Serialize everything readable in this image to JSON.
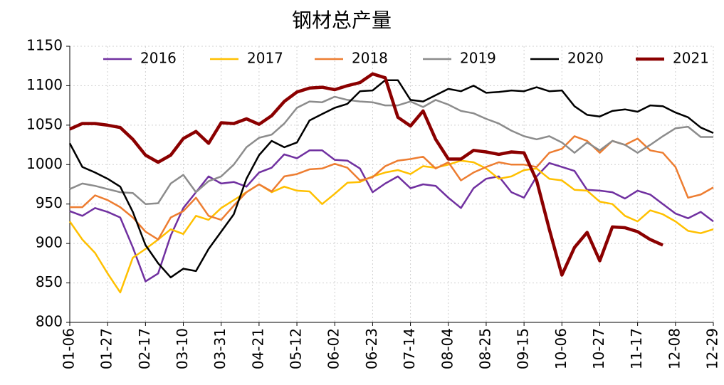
{
  "chart_data": {
    "type": "line",
    "title": "钢材总产量",
    "categories": [
      "01-06",
      null,
      null,
      "01-27",
      null,
      null,
      "02-17",
      null,
      null,
      "03-10",
      null,
      null,
      "03-31",
      null,
      null,
      "04-21",
      null,
      null,
      "05-12",
      null,
      null,
      "06-02",
      null,
      null,
      "06-23",
      null,
      null,
      "07-14",
      null,
      null,
      "08-04",
      null,
      null,
      "08-25",
      null,
      null,
      "09-15",
      null,
      null,
      "10-06",
      null,
      null,
      "10-27",
      null,
      null,
      "11-17",
      null,
      null,
      "12-08",
      null,
      null,
      "12-29"
    ],
    "series": [
      {
        "name": "2016",
        "color": "#7030a0",
        "values": [
          941,
          935,
          945,
          940,
          933,
          895,
          852,
          862,
          910,
          945,
          965,
          985,
          976,
          978,
          972,
          990,
          996,
          1013,
          1008,
          1018,
          1018,
          1006,
          1005,
          995,
          965,
          976,
          985,
          970,
          975,
          973,
          958,
          945,
          970,
          982,
          985,
          965,
          958,
          985,
          1002,
          997,
          992,
          968,
          967,
          965,
          957,
          967,
          962,
          950,
          938,
          932,
          940,
          928
        ]
      },
      {
        "name": "2017",
        "color": "#ffc000",
        "values": [
          928,
          905,
          888,
          862,
          838,
          882,
          893,
          905,
          918,
          912,
          935,
          930,
          945,
          955,
          965,
          975,
          965,
          972,
          967,
          966,
          950,
          963,
          977,
          978,
          985,
          990,
          993,
          988,
          998,
          996,
          1000,
          1005,
          1003,
          995,
          982,
          985,
          993,
          995,
          982,
          980,
          968,
          967,
          953,
          950,
          935,
          928,
          942,
          937,
          928,
          916,
          913,
          918
        ]
      },
      {
        "name": "2018",
        "color": "#ed7d31",
        "values": [
          946,
          946,
          961,
          955,
          946,
          933,
          915,
          905,
          933,
          941,
          958,
          935,
          930,
          948,
          965,
          975,
          966,
          985,
          988,
          994,
          995,
          1001,
          996,
          980,
          984,
          998,
          1005,
          1007,
          1010,
          995,
          1003,
          980,
          990,
          997,
          1003,
          1000,
          1000,
          997,
          1015,
          1020,
          1036,
          1030,
          1015,
          1030,
          1025,
          1033,
          1018,
          1015,
          997,
          958,
          962,
          971
        ]
      },
      {
        "name": "2019",
        "color": "#8c8c8c",
        "values": [
          969,
          976,
          973,
          969,
          965,
          964,
          950,
          951,
          976,
          987,
          965,
          979,
          985,
          1000,
          1022,
          1034,
          1038,
          1052,
          1072,
          1080,
          1079,
          1086,
          1082,
          1080,
          1079,
          1075,
          1075,
          1080,
          1073,
          1082,
          1076,
          1068,
          1065,
          1058,
          1052,
          1043,
          1036,
          1032,
          1036,
          1028,
          1015,
          1028,
          1018,
          1030,
          1025,
          1015,
          1025,
          1036,
          1046,
          1048,
          1035,
          1035
        ]
      },
      {
        "name": "2020",
        "color": "#000000",
        "values": [
          1027,
          997,
          990,
          982,
          972,
          940,
          898,
          875,
          857,
          868,
          865,
          893,
          915,
          937,
          982,
          1012,
          1030,
          1022,
          1028,
          1056,
          1064,
          1072,
          1077,
          1093,
          1094,
          1107,
          1107,
          1082,
          1080,
          1088,
          1096,
          1093,
          1100,
          1091,
          1092,
          1094,
          1093,
          1098,
          1093,
          1094,
          1074,
          1063,
          1061,
          1068,
          1070,
          1067,
          1075,
          1074,
          1066,
          1060,
          1047,
          1040
        ]
      },
      {
        "name": "2021",
        "color": "#8b0000",
        "values": [
          1045,
          1052,
          1052,
          1050,
          1047,
          1032,
          1012,
          1003,
          1012,
          1033,
          1042,
          1027,
          1053,
          1052,
          1058,
          1051,
          1062,
          1080,
          1092,
          1097,
          1098,
          1095,
          1100,
          1104,
          1115,
          1110,
          1060,
          1049,
          1068,
          1032,
          1007,
          1007,
          1018,
          1016,
          1013,
          1016,
          1015,
          980,
          918,
          860,
          895,
          914,
          878,
          921,
          920,
          915,
          905,
          898,
          null,
          null,
          null,
          null
        ]
      }
    ],
    "ylim": [
      800,
      1150
    ],
    "yticks": [
      800,
      850,
      900,
      950,
      1000,
      1050,
      1100,
      1150
    ],
    "grid": true,
    "legend": "top"
  }
}
